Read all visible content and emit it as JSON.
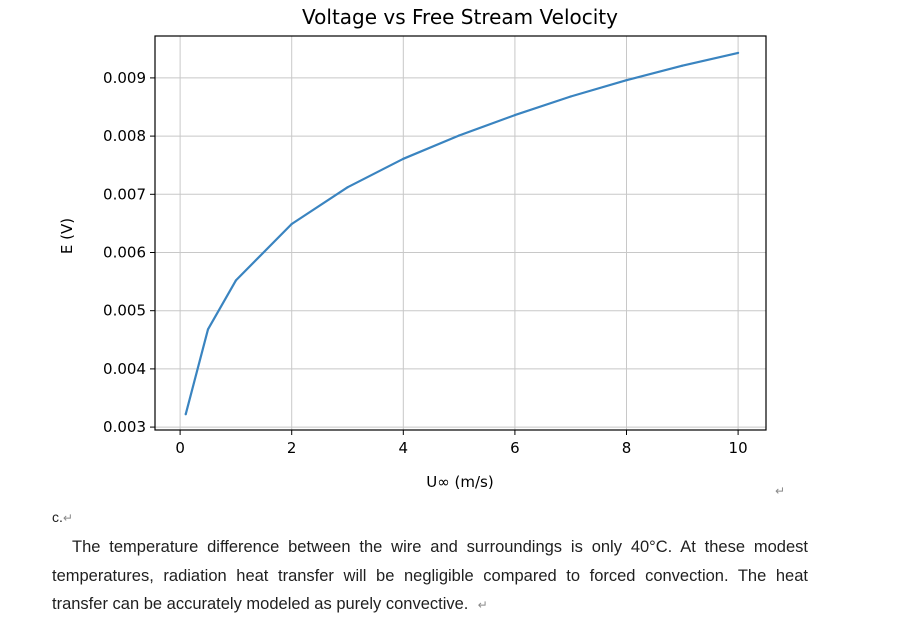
{
  "chart_data": {
    "type": "line",
    "title": "Voltage vs Free Stream Velocity",
    "xlabel": "U∞ (m/s)",
    "ylabel": "E (V)",
    "xlim": [
      -0.45,
      10.5
    ],
    "ylim": [
      0.00295,
      0.00972
    ],
    "xticks": [
      0,
      2,
      4,
      6,
      8,
      10
    ],
    "xtick_labels": [
      "0",
      "2",
      "4",
      "6",
      "8",
      "10"
    ],
    "yticks": [
      0.003,
      0.004,
      0.005,
      0.006,
      0.007,
      0.008,
      0.009
    ],
    "ytick_labels": [
      "0.003",
      "0.004",
      "0.005",
      "0.006",
      "0.007",
      "0.008",
      "0.009"
    ],
    "grid": true,
    "line_color": "#3a84c0",
    "series": [
      {
        "name": "E",
        "x": [
          0.1,
          0.5,
          1,
          2,
          3,
          4,
          5,
          6,
          7,
          8,
          9,
          10
        ],
        "y": [
          0.00322,
          0.00468,
          0.00552,
          0.00649,
          0.00712,
          0.00761,
          0.00801,
          0.00836,
          0.00868,
          0.00896,
          0.00921,
          0.00943
        ]
      }
    ]
  },
  "document": {
    "return_mark": "↵",
    "section_label": "c.",
    "paragraph": "The temperature difference between the wire and surroundings is only 40°C. At these modest temperatures, radiation heat transfer will be negligible compared to forced convection. The heat transfer can be accurately modeled as purely convective."
  }
}
